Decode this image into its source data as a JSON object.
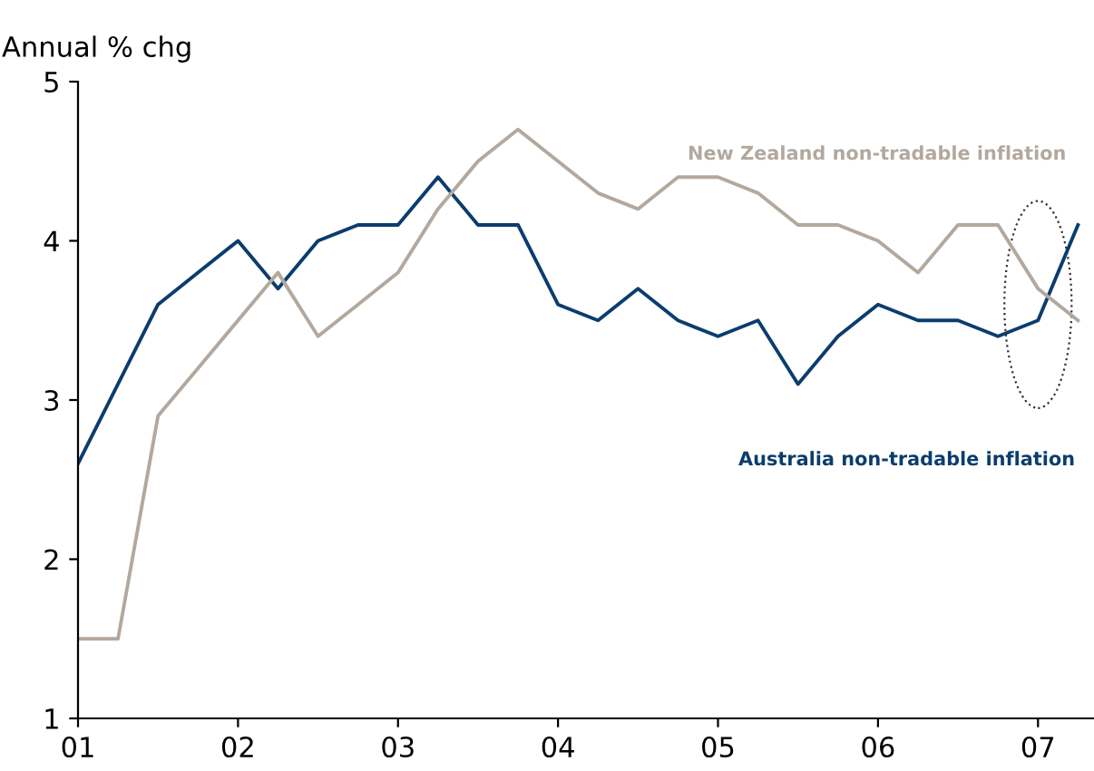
{
  "chart_data": {
    "type": "line",
    "ylabel": "Annual % chg",
    "x": [
      2001,
      2001.25,
      2001.5,
      2001.75,
      2002,
      2002.25,
      2002.5,
      2002.75,
      2003,
      2003.25,
      2003.5,
      2003.75,
      2004,
      2004.25,
      2004.5,
      2004.75,
      2005,
      2005.25,
      2005.5,
      2005.75,
      2006,
      2006.25,
      2006.5,
      2006.75,
      2007,
      2007.25
    ],
    "series": [
      {
        "name": "Australia non-tradable inflation",
        "color": "#0b3d6e",
        "values": [
          2.6,
          3.1,
          3.6,
          3.8,
          4.0,
          3.7,
          4.0,
          4.1,
          4.1,
          4.4,
          4.1,
          4.1,
          3.6,
          3.5,
          3.7,
          3.5,
          3.4,
          3.5,
          3.1,
          3.4,
          3.6,
          3.5,
          3.5,
          3.4,
          3.5,
          4.1
        ]
      },
      {
        "name": "New Zealand non-tradable inflation",
        "color": "#b2a89e",
        "values": [
          1.5,
          1.5,
          2.9,
          3.2,
          3.5,
          3.8,
          3.4,
          3.6,
          3.8,
          4.2,
          4.5,
          4.7,
          4.5,
          4.3,
          4.2,
          4.4,
          4.4,
          4.3,
          4.1,
          4.1,
          4.0,
          3.8,
          4.1,
          4.1,
          3.7,
          3.5
        ]
      }
    ],
    "xlim": [
      2001,
      2007.35
    ],
    "ylim": [
      1,
      5
    ],
    "xticks": [
      {
        "value": 2001,
        "label": "01"
      },
      {
        "value": 2002,
        "label": "02"
      },
      {
        "value": 2003,
        "label": "03"
      },
      {
        "value": 2004,
        "label": "04"
      },
      {
        "value": 2005,
        "label": "05"
      },
      {
        "value": 2006,
        "label": "06"
      },
      {
        "value": 2007,
        "label": "07"
      }
    ],
    "yticks": [
      1,
      2,
      3,
      4,
      5
    ],
    "grid": false,
    "legend": false
  }
}
